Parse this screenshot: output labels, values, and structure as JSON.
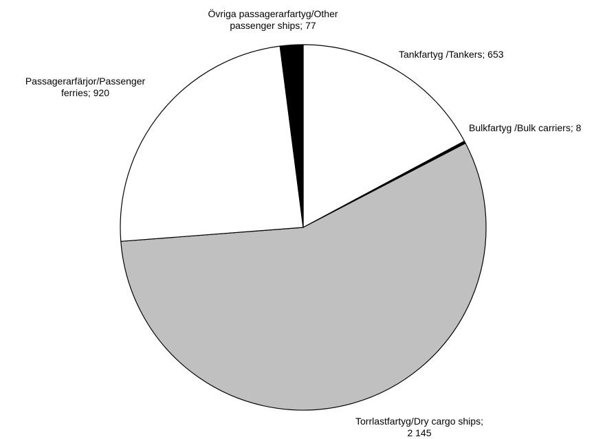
{
  "chart_data": {
    "type": "pie",
    "slices": [
      {
        "name": "Tankfartyg /Tankers",
        "value": 653,
        "color": "#ffffff",
        "label_lines": [
          "Tankfartyg /Tankers;  653"
        ]
      },
      {
        "name": "Bulkfartyg /Bulk carriers",
        "value": 8,
        "color": "#000000",
        "label_lines": [
          "Bulkfartyg /Bulk carriers;  8"
        ]
      },
      {
        "name": "Torrlastfartyg/Dry cargo ships",
        "value": 2145,
        "color": "#c0c0c0",
        "label_lines": [
          "Torrlastfartyg/Dry cargo ships;",
          "2 145"
        ]
      },
      {
        "name": "Passagerarfärjor/Passenger ferries",
        "value": 920,
        "color": "#ffffff",
        "label_lines": [
          "Passagerarfärjor/Passenger",
          "ferries;  920"
        ]
      },
      {
        "name": "Övriga passagerarfartyg/Other passenger ships",
        "value": 77,
        "color": "#000000",
        "label_lines": [
          "Övriga passagerarfartyg/Other",
          "passenger ships;  77"
        ]
      }
    ],
    "start": "12 o'clock",
    "direction": "clockwise",
    "legend": "none"
  }
}
